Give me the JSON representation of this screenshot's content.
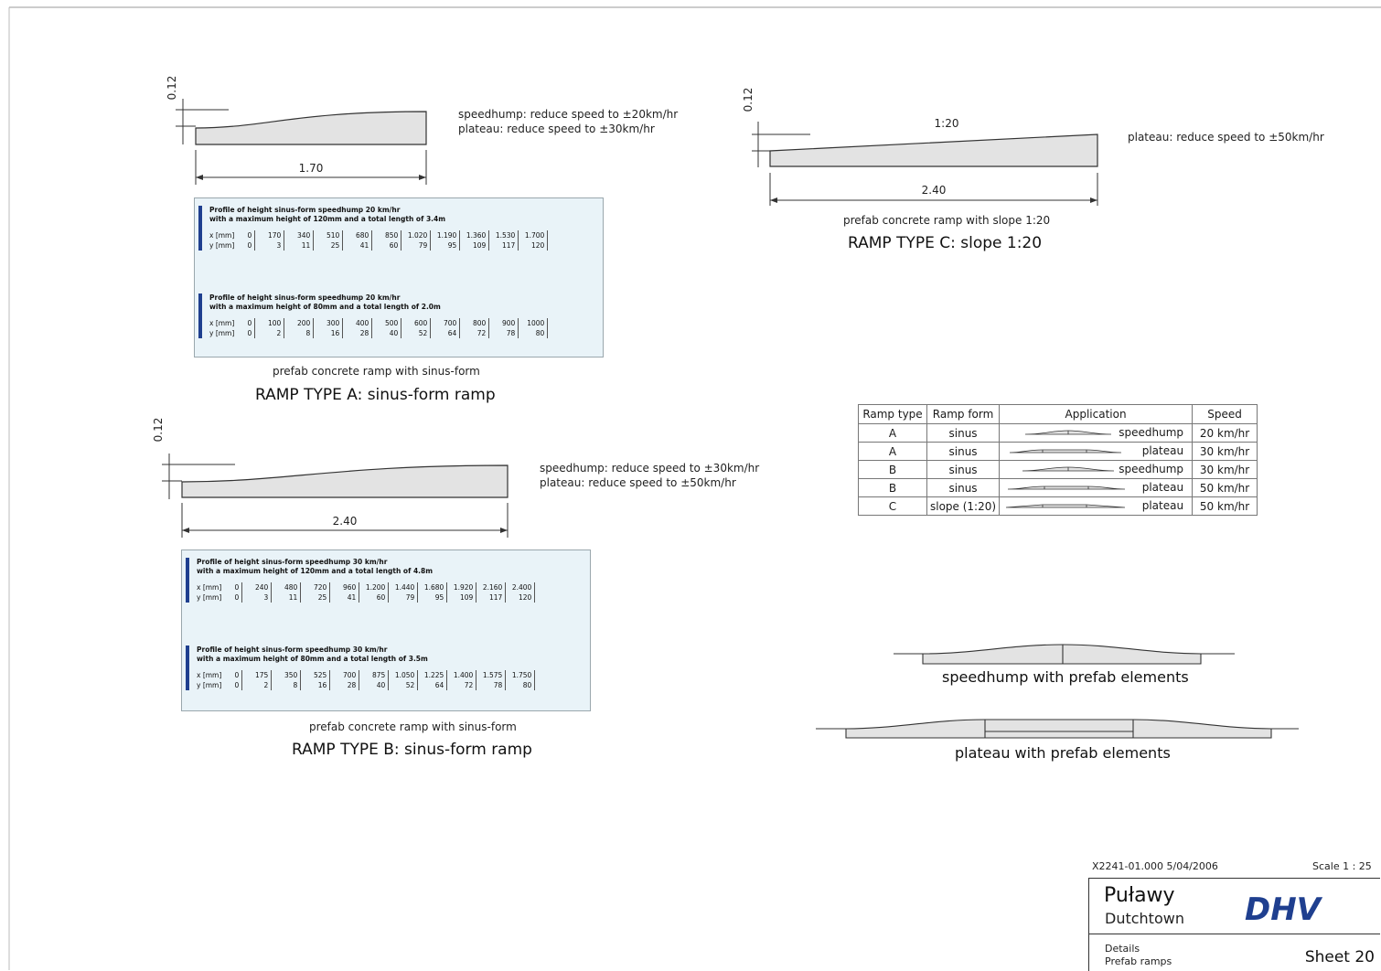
{
  "ramp_a": {
    "height_label": "0.12",
    "length_label": "1.70",
    "note_line1": "speedhump: reduce speed to ±20km/hr",
    "note_line2": "plateau: reduce speed to ±30km/hr",
    "tables": [
      {
        "heading1": "Profile of height sinus-form speedhump 20 km/hr",
        "heading2": "with a maximum height of 120mm and a total length of 3.4m",
        "x_label": "x [mm]",
        "y_label": "y [mm]",
        "x": [
          "0",
          "170",
          "340",
          "510",
          "680",
          "850",
          "1.020",
          "1.190",
          "1.360",
          "1.530",
          "1.700"
        ],
        "y": [
          "0",
          "3",
          "11",
          "25",
          "41",
          "60",
          "79",
          "95",
          "109",
          "117",
          "120"
        ]
      },
      {
        "heading1": "Profile of height sinus-form speedhump 20 km/hr",
        "heading2": "with a maximum height of 80mm and a total length of 2.0m",
        "x_label": "x [mm]",
        "y_label": "y [mm]",
        "x": [
          "0",
          "100",
          "200",
          "300",
          "400",
          "500",
          "600",
          "700",
          "800",
          "900",
          "1000"
        ],
        "y": [
          "0",
          "2",
          "8",
          "16",
          "28",
          "40",
          "52",
          "64",
          "72",
          "78",
          "80"
        ]
      }
    ],
    "caption": "prefab concrete ramp with sinus-form",
    "title": "RAMP TYPE A: sinus-form ramp"
  },
  "ramp_b": {
    "height_label": "0.12",
    "length_label": "2.40",
    "note_line1": "speedhump: reduce speed to ±30km/hr",
    "note_line2": "plateau: reduce speed to ±50km/hr",
    "tables": [
      {
        "heading1": "Profile of height sinus-form speedhump 30 km/hr",
        "heading2": "with a maximum height of 120mm and a total length of 4.8m",
        "x_label": "x [mm]",
        "y_label": "y [mm]",
        "x": [
          "0",
          "240",
          "480",
          "720",
          "960",
          "1.200",
          "1.440",
          "1.680",
          "1.920",
          "2.160",
          "2.400"
        ],
        "y": [
          "0",
          "3",
          "11",
          "25",
          "41",
          "60",
          "79",
          "95",
          "109",
          "117",
          "120"
        ]
      },
      {
        "heading1": "Profile of height sinus-form speedhump 30 km/hr",
        "heading2": "with a maximum height of 80mm and a total length of 3.5m",
        "x_label": "x [mm]",
        "y_label": "y [mm]",
        "x": [
          "0",
          "175",
          "350",
          "525",
          "700",
          "875",
          "1.050",
          "1.225",
          "1.400",
          "1.575",
          "1.750"
        ],
        "y": [
          "0",
          "2",
          "8",
          "16",
          "28",
          "40",
          "52",
          "64",
          "72",
          "78",
          "80"
        ]
      }
    ],
    "caption": "prefab concrete ramp with sinus-form",
    "title": "RAMP TYPE B: sinus-form ramp"
  },
  "ramp_c": {
    "height_label": "0.12",
    "slope_label": "1:20",
    "length_label": "2.40",
    "note_line1": "plateau: reduce speed to ±50km/hr",
    "caption": "prefab concrete ramp with slope 1:20",
    "title": "RAMP TYPE C: slope 1:20"
  },
  "summary": {
    "headers": [
      "Ramp type",
      "Ramp form",
      "Application",
      "Speed"
    ],
    "rows": [
      {
        "type": "A",
        "form": "sinus",
        "application": "speedhump",
        "speed": "20 km/hr"
      },
      {
        "type": "A",
        "form": "sinus",
        "application": "plateau",
        "speed": "30 km/hr"
      },
      {
        "type": "B",
        "form": "sinus",
        "application": "speedhump",
        "speed": "30 km/hr"
      },
      {
        "type": "B",
        "form": "sinus",
        "application": "plateau",
        "speed": "50 km/hr"
      },
      {
        "type": "C",
        "form": "slope (1:20)",
        "application": "plateau",
        "speed": "50 km/hr"
      }
    ]
  },
  "details": {
    "speedhump_caption": "speedhump with prefab elements",
    "plateau_caption": "plateau with prefab elements"
  },
  "title_block": {
    "reference": "X2241-01.000 5/04/2006",
    "scale": "Scale 1 : 25",
    "project": "Puławy",
    "subproject": "Dutchtown",
    "logo_text": "DHV",
    "drawing_line1": "Details",
    "drawing_line2": "Prefab ramps",
    "sheet": "Sheet 20"
  },
  "colors": {
    "ramp_fill": "#e3e3e3",
    "table_bg": "#e9f3f8",
    "table_accent": "#1f3f8f",
    "logo": "#1f3f8f"
  }
}
